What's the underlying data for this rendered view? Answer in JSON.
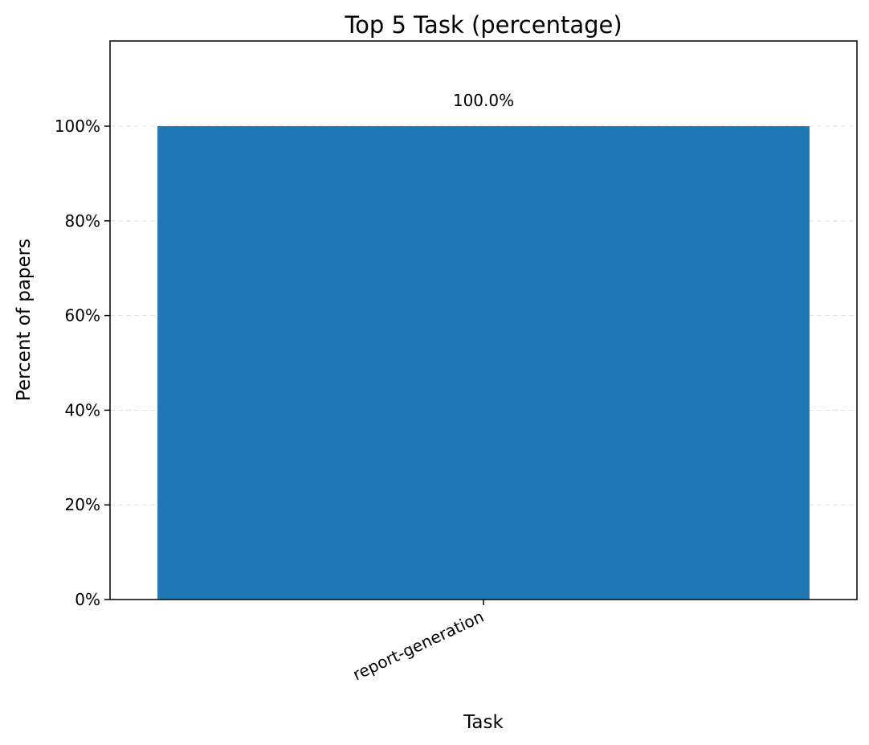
{
  "chart_data": {
    "type": "bar",
    "title": "Top 5 Task (percentage)",
    "xlabel": "Task",
    "ylabel": "Percent of papers",
    "categories": [
      "report-generation"
    ],
    "values": [
      100.0
    ],
    "data_labels": [
      "100.0%"
    ],
    "ylim": [
      0,
      118
    ],
    "yticks": [
      0,
      20,
      40,
      60,
      80,
      100
    ],
    "ytick_labels": [
      "0%",
      "20%",
      "40%",
      "60%",
      "80%",
      "100%"
    ],
    "grid": "y-dashed",
    "bar_color": "#1f77b4",
    "grid_color": "#e0e0e0"
  }
}
